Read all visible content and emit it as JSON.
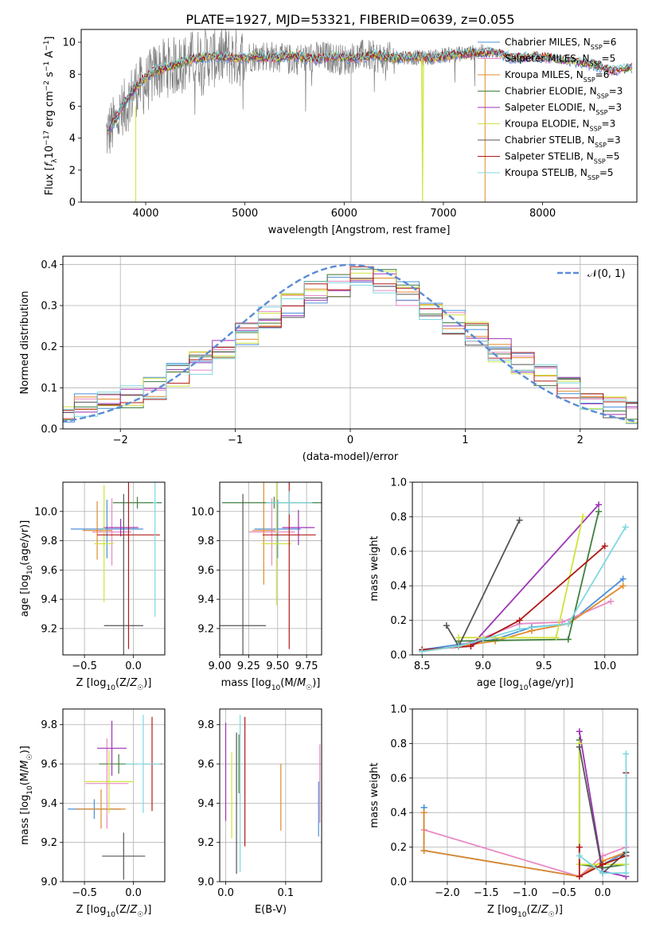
{
  "figure_title": "PLATE=1927, MJD=53321, FIBERID=0639, z=0.055",
  "series_colors": [
    "#4a90d9",
    "#e88ac4",
    "#e08a2c",
    "#3f7f3f",
    "#9c33b5",
    "#cfe33c",
    "#555555",
    "#b01a1a",
    "#7fd8e0"
  ],
  "chart_data": [
    {
      "id": "spectrum",
      "type": "line",
      "xlabel": "wavelength [Angstrom, rest frame]",
      "ylabel": "Flux [f_λ10^-17 erg cm^-2 s^-1 A^-1]",
      "xlim": [
        3350,
        8950
      ],
      "ylim": [
        0,
        10.8
      ],
      "xticks": [
        4000,
        5000,
        6000,
        7000,
        8000
      ],
      "yticks": [
        0,
        2,
        4,
        6,
        8,
        10
      ],
      "grid": false,
      "legend_position": "right",
      "legend": [
        "Chabrier MILES, N_SSP=6",
        "Salpeter MILES, N_SSP=5",
        "Kroupa MILES, N_SSP=6",
        "Chabrier ELODIE, N_SSP=3",
        "Salpeter ELODIE, N_SSP=3",
        "Kroupa ELODIE, N_SSP=3",
        "Chabrier STELIB, N_SSP=3",
        "Salpeter STELIB, N_SSP=5",
        "Kroupa STELIB, N_SSP=5"
      ],
      "observed": {
        "wavelength": [
          3600,
          3700,
          3800,
          3900,
          4000,
          4100,
          4200,
          4300,
          4400,
          4500,
          4600,
          4700,
          4800,
          4900,
          5000,
          5200,
          5400,
          5600,
          5800,
          6000,
          6200,
          6400,
          6600,
          6800,
          7000,
          7200,
          7400
        ],
        "flux": [
          4.2,
          5.0,
          6.0,
          7.2,
          7.3,
          8.2,
          8.4,
          8.5,
          8.7,
          9.0,
          9.1,
          9.0,
          9.2,
          9.0,
          9.1,
          9.2,
          8.9,
          9.0,
          9.1,
          8.9,
          9.2,
          9.0,
          9.1,
          9.0,
          9.2,
          9.3,
          9.4
        ]
      },
      "model": {
        "wavelength": [
          3620,
          3700,
          3800,
          3900,
          4000,
          4100,
          4200,
          4300,
          4400,
          4500,
          4700,
          4900,
          5100,
          5300,
          5500,
          5700,
          5900,
          6100,
          6300,
          6500,
          6700,
          6900,
          7100,
          7300,
          7500,
          7700,
          7900,
          8100,
          8300,
          8500,
          8700,
          8900
        ],
        "flux": [
          4.5,
          5.2,
          6.3,
          7.2,
          7.8,
          8.2,
          8.4,
          8.6,
          8.8,
          9.0,
          9.1,
          9.0,
          9.1,
          9.0,
          9.2,
          8.9,
          9.1,
          9.0,
          9.2,
          9.0,
          9.1,
          9.0,
          9.2,
          9.3,
          9.4,
          9.0,
          9.1,
          9.0,
          8.8,
          8.6,
          8.2,
          8.4
        ]
      }
    },
    {
      "id": "residuals",
      "type": "histogram",
      "xlabel": "(data-model)/error",
      "ylabel": "Normed distribution",
      "xlim": [
        -2.5,
        2.5
      ],
      "ylim": [
        0,
        0.42
      ],
      "xticks": [
        -2,
        -1,
        0,
        1,
        2
      ],
      "yticks": [
        0.0,
        0.1,
        0.2,
        0.3,
        0.4
      ],
      "grid": true,
      "legend": [
        "𝒩(0, 1)"
      ],
      "legend_position": "top-right",
      "bin_edges": [
        -2.6,
        -2.4,
        -2.2,
        -2.0,
        -1.8,
        -1.6,
        -1.4,
        -1.2,
        -1.0,
        -0.8,
        -0.6,
        -0.4,
        -0.2,
        0.0,
        0.2,
        0.4,
        0.6,
        0.8,
        1.0,
        1.2,
        1.4,
        1.6,
        1.8,
        2.0,
        2.2,
        2.4,
        2.6
      ],
      "profile": [
        0.04,
        0.06,
        0.07,
        0.08,
        0.1,
        0.13,
        0.16,
        0.19,
        0.23,
        0.27,
        0.3,
        0.33,
        0.35,
        0.37,
        0.36,
        0.33,
        0.29,
        0.26,
        0.23,
        0.19,
        0.16,
        0.13,
        0.1,
        0.07,
        0.05,
        0.04
      ]
    },
    {
      "id": "age-vs-metallicity",
      "type": "errorbar",
      "xlabel": "Z [log10(Z/Z☉)]",
      "ylabel": "age  [log10(age/yr)]",
      "xlim": [
        -0.72,
        0.32
      ],
      "ylim": [
        9.02,
        10.2
      ],
      "xticks": [
        -0.5,
        0.0
      ],
      "yticks": [
        9.2,
        9.4,
        9.6,
        9.8,
        10.0
      ],
      "grid": true,
      "points": [
        {
          "x": -0.27,
          "y": 9.88,
          "xerr": 0.37,
          "yerr": 0.2
        },
        {
          "x": -0.22,
          "y": 9.86,
          "xerr": 0.2,
          "yerr": 0.23
        },
        {
          "x": -0.37,
          "y": 9.87,
          "xerr": 0.15,
          "yerr": 0.2
        },
        {
          "x": 0.04,
          "y": 10.06,
          "xerr": 0.25,
          "yerr": 0.04
        },
        {
          "x": -0.13,
          "y": 9.89,
          "xerr": 0.18,
          "yerr": 0.06
        },
        {
          "x": -0.3,
          "y": 9.78,
          "xerr": 0.1,
          "yerr": 0.4
        },
        {
          "x": -0.1,
          "y": 9.22,
          "xerr": 0.2,
          "yerr": 0.9
        },
        {
          "x": -0.05,
          "y": 9.84,
          "xerr": 0.32,
          "yerr": 0.78
        },
        {
          "x": 0.22,
          "y": 10.06,
          "xerr": 0.02,
          "yerr": 0.78
        }
      ]
    },
    {
      "id": "age-vs-mass",
      "type": "errorbar",
      "xlabel": "mass [log10(M/M☉)]",
      "ylabel": "",
      "xlim": [
        9.0,
        9.88
      ],
      "ylim": [
        9.02,
        10.2
      ],
      "xticks": [
        9.0,
        9.25,
        9.5,
        9.75
      ],
      "yticks": [
        9.2,
        9.4,
        9.6,
        9.8,
        10.0
      ],
      "grid": true,
      "points": [
        {
          "x": 9.5,
          "y": 9.88,
          "xerr": 0.2,
          "yerr": 0.2
        },
        {
          "x": 9.45,
          "y": 9.86,
          "xerr": 0.2,
          "yerr": 0.23
        },
        {
          "x": 9.38,
          "y": 9.87,
          "xerr": 0.1,
          "yerr": 0.37
        },
        {
          "x": 9.47,
          "y": 10.06,
          "xerr": 0.45,
          "yerr": 0.04
        },
        {
          "x": 9.68,
          "y": 9.89,
          "xerr": 0.14,
          "yerr": 0.12
        },
        {
          "x": 9.49,
          "y": 9.78,
          "xerr": 0.13,
          "yerr": 0.42
        },
        {
          "x": 9.2,
          "y": 9.22,
          "xerr": 0.2,
          "yerr": 0.9
        },
        {
          "x": 9.6,
          "y": 9.84,
          "xerr": 0.23,
          "yerr": 0.78
        },
        {
          "x": 9.6,
          "y": 10.06,
          "xerr": 0.2,
          "yerr": 0.08
        }
      ]
    },
    {
      "id": "weight-vs-age",
      "type": "line",
      "xlabel": "age  [log10(age/yr)]",
      "ylabel": "mass weight",
      "xlim": [
        8.42,
        10.27
      ],
      "ylim": [
        0,
        1
      ],
      "xticks": [
        8.5,
        9.0,
        9.5,
        10.0
      ],
      "yticks": [
        0.0,
        0.2,
        0.4,
        0.6,
        0.8,
        1.0
      ],
      "grid": true,
      "series": [
        {
          "x": [
            8.5,
            8.8,
            9.1,
            9.4,
            9.7,
            10.15
          ],
          "y": [
            0.03,
            0.06,
            0.09,
            0.16,
            0.18,
            0.44
          ]
        },
        {
          "x": [
            8.5,
            8.8,
            9.0,
            9.3,
            9.65,
            10.05
          ],
          "y": [
            0.02,
            0.05,
            0.1,
            0.18,
            0.19,
            0.31
          ]
        },
        {
          "x": [
            8.5,
            8.8,
            9.1,
            9.4,
            9.7,
            10.15
          ],
          "y": [
            0.02,
            0.05,
            0.08,
            0.14,
            0.18,
            0.4
          ]
        },
        {
          "x": [
            8.8,
            9.7,
            9.95
          ],
          "y": [
            0.08,
            0.09,
            0.83
          ]
        },
        {
          "x": [
            8.9,
            9.95
          ],
          "y": [
            0.05,
            0.87
          ]
        },
        {
          "x": [
            8.8,
            9.6,
            9.82
          ],
          "y": [
            0.1,
            0.1,
            0.8
          ]
        },
        {
          "x": [
            8.7,
            8.8,
            9.3
          ],
          "y": [
            0.17,
            0.05,
            0.78
          ]
        },
        {
          "x": [
            8.5,
            8.9,
            9.3,
            10.0
          ],
          "y": [
            0.03,
            0.05,
            0.2,
            0.63
          ]
        },
        {
          "x": [
            8.5,
            8.8,
            9.0,
            9.3,
            9.7,
            10.17
          ],
          "y": [
            0.02,
            0.05,
            0.09,
            0.15,
            0.18,
            0.74
          ]
        }
      ]
    },
    {
      "id": "mass-vs-metallicity",
      "type": "errorbar",
      "xlabel": "Z [log10(Z/Z☉)]",
      "ylabel": "mass [log10(M/M☉)]",
      "xlim": [
        -0.72,
        0.32
      ],
      "ylim": [
        9.0,
        9.88
      ],
      "xticks": [
        -0.5,
        0.0
      ],
      "yticks": [
        9.0,
        9.2,
        9.4,
        9.6,
        9.8
      ],
      "grid": true,
      "points": [
        {
          "x": -0.4,
          "y": 9.37,
          "xerr": 0.27,
          "yerr": 0.05
        },
        {
          "x": -0.27,
          "y": 9.5,
          "xerr": 0.22,
          "yerr": 0.23
        },
        {
          "x": -0.33,
          "y": 9.37,
          "xerr": 0.25,
          "yerr": 0.1
        },
        {
          "x": -0.15,
          "y": 9.6,
          "xerr": 0.2,
          "yerr": 0.05
        },
        {
          "x": -0.22,
          "y": 9.68,
          "xerr": 0.15,
          "yerr": 0.14
        },
        {
          "x": -0.25,
          "y": 9.51,
          "xerr": 0.25,
          "yerr": 0.16
        },
        {
          "x": -0.1,
          "y": 9.13,
          "xerr": 0.22,
          "yerr": 0.12
        },
        {
          "x": 0.19,
          "y": 9.6,
          "xerr": 0.1,
          "yerr": 0.24
        },
        {
          "x": 0.1,
          "y": 9.6,
          "xerr": 0.18,
          "yerr": 0.25
        }
      ]
    },
    {
      "id": "mass-vs-extinction",
      "type": "errorbar",
      "xlabel": "E(B-V)",
      "ylabel": "",
      "xlim": [
        -0.01,
        0.16
      ],
      "ylim": [
        9.0,
        9.88
      ],
      "xticks": [
        0.0,
        0.1
      ],
      "yticks": [
        9.0,
        9.2,
        9.4,
        9.6,
        9.8
      ],
      "grid": true,
      "points": [
        {
          "x": 0.155,
          "y": 9.37,
          "xerr": 0,
          "yerr": 0.14
        },
        {
          "x": 0.157,
          "y": 9.5,
          "xerr": 0,
          "yerr": 0.2
        },
        {
          "x": 0.092,
          "y": 9.43,
          "xerr": 0,
          "yerr": 0.17
        },
        {
          "x": 0.022,
          "y": 9.6,
          "xerr": 0,
          "yerr": 0.15
        },
        {
          "x": 0.0,
          "y": 9.56,
          "xerr": 0,
          "yerr": 0.25
        },
        {
          "x": 0.01,
          "y": 9.44,
          "xerr": 0,
          "yerr": 0.22
        },
        {
          "x": 0.018,
          "y": 9.4,
          "xerr": 0,
          "yerr": 0.36
        },
        {
          "x": 0.032,
          "y": 9.51,
          "xerr": 0,
          "yerr": 0.33
        },
        {
          "x": 0.024,
          "y": 9.45,
          "xerr": 0,
          "yerr": 0.4
        }
      ]
    },
    {
      "id": "weight-vs-metallicity",
      "type": "line",
      "xlabel": "Z [log10(Z/Z☉)]",
      "ylabel": "mass weight",
      "xlim": [
        -2.45,
        0.45
      ],
      "ylim": [
        0,
        1
      ],
      "xticks": [
        -2.0,
        -1.5,
        -1.0,
        -0.5,
        0.0
      ],
      "yticks": [
        0.0,
        0.2,
        0.4,
        0.6,
        0.8,
        1.0
      ],
      "grid": true,
      "series": [
        {
          "x": [
            -2.3,
            -2.3,
            -0.3,
            0.0,
            0.3
          ],
          "y": [
            0.43,
            0.18,
            0.03,
            0.1,
            0.17
          ]
        },
        {
          "x": [
            -2.3,
            -0.3,
            0.0,
            0.3
          ],
          "y": [
            0.3,
            0.03,
            0.15,
            0.2
          ]
        },
        {
          "x": [
            -2.3,
            -2.3,
            -0.3,
            0.0,
            0.3
          ],
          "y": [
            0.4,
            0.18,
            0.03,
            0.12,
            0.17
          ]
        },
        {
          "x": [
            -0.3,
            -0.3,
            0.0,
            0.3
          ],
          "y": [
            0.82,
            0.1,
            0.08,
            0.1
          ]
        },
        {
          "x": [
            -0.3,
            0.0,
            0.3
          ],
          "y": [
            0.87,
            0.06,
            0.03
          ]
        },
        {
          "x": [
            -0.3,
            -0.3,
            0.0,
            0.3
          ],
          "y": [
            0.8,
            0.1,
            0.1,
            0.1
          ]
        },
        {
          "x": [
            -0.3,
            0.0,
            0.3
          ],
          "y": [
            0.78,
            0.05,
            0.17
          ]
        },
        {
          "x": [
            -0.3,
            -0.3,
            0.0,
            0.3,
            0.3
          ],
          "y": [
            0.2,
            0.03,
            0.1,
            0.15,
            0.63
          ]
        },
        {
          "x": [
            -0.3,
            0.0,
            0.3,
            0.3
          ],
          "y": [
            0.15,
            0.05,
            0.05,
            0.74
          ]
        }
      ]
    }
  ]
}
